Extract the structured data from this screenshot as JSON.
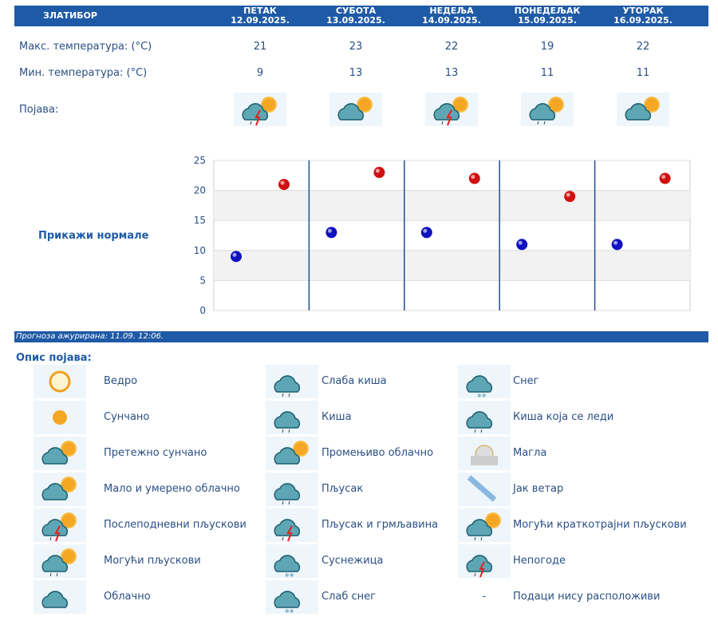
{
  "header": {
    "location": "ЗЛАТИБОР",
    "days": [
      {
        "name": "ПЕТАК",
        "date": "12.09.2025.",
        "max": "21",
        "min": "9",
        "icon": "thunder-showers-sun-icon"
      },
      {
        "name": "СУБОТА",
        "date": "13.09.2025.",
        "max": "23",
        "min": "13",
        "icon": "partly-cloudy-icon"
      },
      {
        "name": "НЕДЕЉА",
        "date": "14.09.2025.",
        "max": "22",
        "min": "13",
        "icon": "afternoon-thunderstorm-icon"
      },
      {
        "name": "ПОНЕДЕЉАК",
        "date": "15.09.2025.",
        "max": "19",
        "min": "11",
        "icon": "possible-showers-icon"
      },
      {
        "name": "УТОРАК",
        "date": "16.09.2025.",
        "max": "22",
        "min": "11",
        "icon": "mostly-sunny-icon"
      }
    ]
  },
  "labels": {
    "max": "Макс. температура: (°C)",
    "min": "Мин. температура: (°C)",
    "phenomenon": "Појава:",
    "normals": "Прикажи нормале",
    "updated": "Прогноза ажурирана:  11.09.  12:06.",
    "legend_title": "Опис појава:"
  },
  "chart_data": {
    "type": "scatter",
    "ylim": [
      0,
      25
    ],
    "yticks": [
      "0",
      "5",
      "10",
      "15",
      "20",
      "25"
    ],
    "categories": [
      "12.09.2025.",
      "13.09.2025.",
      "14.09.2025.",
      "15.09.2025.",
      "16.09.2025."
    ],
    "series": [
      {
        "name": "min",
        "color": "#1010c0",
        "values": [
          9,
          13,
          13,
          11,
          11
        ]
      },
      {
        "name": "max",
        "color": "#d01010",
        "values": [
          21,
          23,
          22,
          19,
          22
        ]
      }
    ]
  },
  "legend": [
    {
      "label": "Ведро",
      "icon": "clear-sun-icon"
    },
    {
      "label": "Слаба киша",
      "icon": "light-rain-icon"
    },
    {
      "label": "Снег",
      "icon": "snow-icon"
    },
    {
      "label": "Сунчано",
      "icon": "sunny-icon"
    },
    {
      "label": "Киша",
      "icon": "rain-icon"
    },
    {
      "label": "Киша која се леди",
      "icon": "freezing-rain-icon"
    },
    {
      "label": "Претежно сунчано",
      "icon": "mostly-sunny-icon"
    },
    {
      "label": "Промењиво облачно",
      "icon": "variable-cloudy-icon"
    },
    {
      "label": "Магла",
      "icon": "fog-icon"
    },
    {
      "label": "Мало и умерено облачно",
      "icon": "partly-cloudy-icon"
    },
    {
      "label": "Пљусак",
      "icon": "shower-icon"
    },
    {
      "label": "Јак ветар",
      "icon": "strong-wind-icon"
    },
    {
      "label": "Послеподневни пљускови",
      "icon": "afternoon-thunderstorm-icon"
    },
    {
      "label": "Пљусак и грмљавина",
      "icon": "thunder-shower-icon"
    },
    {
      "label": "Могући краткотрајни пљускови",
      "icon": "brief-showers-icon"
    },
    {
      "label": "Могући пљускови",
      "icon": "possible-showers-icon"
    },
    {
      "label": "Суснежица",
      "icon": "sleet-icon"
    },
    {
      "label": "Непогоде",
      "icon": "storm-icon"
    },
    {
      "label": "Облачно",
      "icon": "cloudy-icon"
    },
    {
      "label": "Слаб снег",
      "icon": "light-snow-icon"
    },
    {
      "label": "Подаци нису расположиви",
      "icon": "-"
    }
  ]
}
